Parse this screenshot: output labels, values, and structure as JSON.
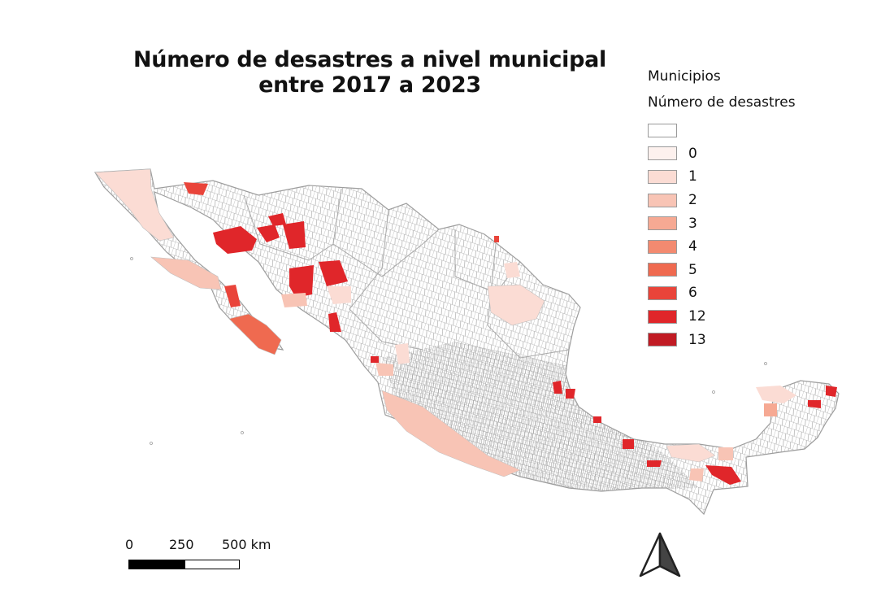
{
  "title": {
    "line1": "Número de desastres a nivel municipal",
    "line2": "entre 2017 a 2023"
  },
  "legend": {
    "layer": "Municipios",
    "field": "Número de desastres",
    "classes": [
      {
        "label": "",
        "color": "#ffffff"
      },
      {
        "label": "0",
        "color": "#fdf1ee"
      },
      {
        "label": "1",
        "color": "#fbdcd4"
      },
      {
        "label": "2",
        "color": "#f8c4b5"
      },
      {
        "label": "3",
        "color": "#f6a993"
      },
      {
        "label": "4",
        "color": "#f38a70"
      },
      {
        "label": "5",
        "color": "#ef6a50"
      },
      {
        "label": "6",
        "color": "#e9443a"
      },
      {
        "label": "12",
        "color": "#e0262a"
      },
      {
        "label": "13",
        "color": "#c11b24"
      }
    ]
  },
  "scalebar": {
    "ticks": [
      "0",
      "250",
      "500 km"
    ]
  },
  "north_arrow": {
    "icon": "north-arrow-icon"
  }
}
